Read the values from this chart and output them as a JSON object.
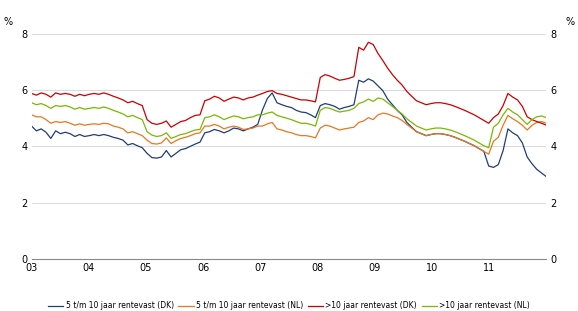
{
  "ylabel_left": "%",
  "ylabel_right": "%",
  "ylim": [
    0,
    8
  ],
  "yticks": [
    0,
    2,
    4,
    6,
    8
  ],
  "xtick_positions": [
    0,
    12,
    24,
    36,
    48,
    60,
    72,
    84,
    96,
    108
  ],
  "xtick_labels": [
    "03",
    "04",
    "05",
    "06",
    "07",
    "08",
    "09",
    "10",
    "11",
    ""
  ],
  "legend_labels": [
    "5 t/m 10 jaar rentevast (DK)",
    "5 t/m 10 jaar rentevast (NL)",
    ">10 jaar rentevast (DK)",
    ">10 jaar rentevast (NL)"
  ],
  "colors": {
    "DK_5_10": "#1f3d7a",
    "NL_5_10": "#e87722",
    "DK_10plus": "#cc0000",
    "NL_10plus": "#7ab800"
  },
  "series": {
    "DK_5_10": [
      4.72,
      4.55,
      4.62,
      4.5,
      4.28,
      4.55,
      4.45,
      4.5,
      4.45,
      4.35,
      4.42,
      4.35,
      4.38,
      4.42,
      4.38,
      4.42,
      4.38,
      4.32,
      4.28,
      4.22,
      4.05,
      4.1,
      4.02,
      3.95,
      3.75,
      3.6,
      3.58,
      3.62,
      3.85,
      3.62,
      3.75,
      3.88,
      3.92,
      4.0,
      4.08,
      4.15,
      4.48,
      4.52,
      4.6,
      4.55,
      4.48,
      4.55,
      4.65,
      4.62,
      4.55,
      4.62,
      4.68,
      4.78,
      5.3,
      5.7,
      5.9,
      5.55,
      5.48,
      5.42,
      5.38,
      5.28,
      5.22,
      5.2,
      5.12,
      5.02,
      5.45,
      5.52,
      5.48,
      5.42,
      5.32,
      5.38,
      5.42,
      5.48,
      6.35,
      6.28,
      6.4,
      6.32,
      6.15,
      5.98,
      5.68,
      5.48,
      5.28,
      5.12,
      4.85,
      4.68,
      4.52,
      4.45,
      4.38,
      4.42,
      4.45,
      4.45,
      4.42,
      4.38,
      4.32,
      4.25,
      4.18,
      4.1,
      4.02,
      3.92,
      3.82,
      3.3,
      3.25,
      3.35,
      3.85,
      4.62,
      4.48,
      4.38,
      4.12,
      3.62,
      3.38,
      3.18,
      3.05,
      2.92
    ],
    "NL_5_10": [
      5.12,
      5.05,
      5.05,
      4.95,
      4.82,
      4.88,
      4.85,
      4.88,
      4.82,
      4.75,
      4.8,
      4.75,
      4.78,
      4.8,
      4.78,
      4.82,
      4.8,
      4.72,
      4.68,
      4.62,
      4.48,
      4.52,
      4.45,
      4.38,
      4.22,
      4.1,
      4.08,
      4.12,
      4.3,
      4.1,
      4.2,
      4.28,
      4.32,
      4.38,
      4.45,
      4.48,
      4.72,
      4.72,
      4.78,
      4.72,
      4.62,
      4.68,
      4.72,
      4.68,
      4.6,
      4.62,
      4.65,
      4.72,
      4.72,
      4.8,
      4.85,
      4.62,
      4.58,
      4.52,
      4.48,
      4.42,
      4.38,
      4.38,
      4.35,
      4.3,
      4.65,
      4.75,
      4.72,
      4.65,
      4.58,
      4.62,
      4.65,
      4.68,
      4.85,
      4.9,
      5.02,
      4.95,
      5.12,
      5.18,
      5.15,
      5.08,
      5.02,
      4.92,
      4.78,
      4.65,
      4.52,
      4.45,
      4.38,
      4.42,
      4.45,
      4.45,
      4.42,
      4.38,
      4.32,
      4.25,
      4.18,
      4.1,
      4.02,
      3.92,
      3.82,
      3.72,
      4.18,
      4.32,
      4.75,
      5.1,
      4.98,
      4.88,
      4.75,
      4.58,
      4.75,
      4.85,
      4.88,
      4.82
    ],
    "DK_10plus": [
      5.88,
      5.82,
      5.9,
      5.85,
      5.75,
      5.9,
      5.85,
      5.88,
      5.85,
      5.78,
      5.85,
      5.8,
      5.85,
      5.88,
      5.85,
      5.9,
      5.85,
      5.78,
      5.72,
      5.65,
      5.55,
      5.6,
      5.52,
      5.45,
      4.95,
      4.82,
      4.78,
      4.82,
      4.9,
      4.68,
      4.78,
      4.88,
      4.92,
      5.02,
      5.1,
      5.12,
      5.62,
      5.68,
      5.78,
      5.72,
      5.6,
      5.68,
      5.75,
      5.72,
      5.65,
      5.72,
      5.75,
      5.82,
      5.88,
      5.95,
      5.98,
      5.88,
      5.85,
      5.8,
      5.75,
      5.7,
      5.65,
      5.65,
      5.62,
      5.58,
      6.45,
      6.55,
      6.5,
      6.42,
      6.35,
      6.38,
      6.42,
      6.48,
      7.52,
      7.42,
      7.7,
      7.62,
      7.3,
      7.05,
      6.78,
      6.55,
      6.35,
      6.18,
      5.95,
      5.78,
      5.62,
      5.55,
      5.48,
      5.52,
      5.55,
      5.55,
      5.52,
      5.48,
      5.42,
      5.35,
      5.28,
      5.2,
      5.12,
      5.02,
      4.92,
      4.82,
      5.02,
      5.15,
      5.45,
      5.88,
      5.75,
      5.65,
      5.42,
      5.05,
      4.95,
      4.88,
      4.82,
      4.75
    ],
    "NL_10plus": [
      5.55,
      5.48,
      5.52,
      5.45,
      5.35,
      5.45,
      5.42,
      5.45,
      5.4,
      5.32,
      5.38,
      5.32,
      5.35,
      5.38,
      5.35,
      5.4,
      5.35,
      5.28,
      5.22,
      5.15,
      5.05,
      5.1,
      5.02,
      4.95,
      4.52,
      4.4,
      4.35,
      4.38,
      4.48,
      4.28,
      4.35,
      4.42,
      4.45,
      4.52,
      4.58,
      4.6,
      5.02,
      5.05,
      5.12,
      5.05,
      4.95,
      5.02,
      5.08,
      5.05,
      4.98,
      5.02,
      5.05,
      5.12,
      5.12,
      5.18,
      5.22,
      5.1,
      5.05,
      5.0,
      4.95,
      4.88,
      4.82,
      4.82,
      4.78,
      4.72,
      5.28,
      5.38,
      5.35,
      5.28,
      5.22,
      5.25,
      5.28,
      5.35,
      5.52,
      5.58,
      5.68,
      5.6,
      5.72,
      5.68,
      5.55,
      5.42,
      5.28,
      5.15,
      4.98,
      4.85,
      4.72,
      4.65,
      4.58,
      4.62,
      4.65,
      4.65,
      4.62,
      4.58,
      4.52,
      4.45,
      4.38,
      4.3,
      4.22,
      4.12,
      4.02,
      3.95,
      4.68,
      4.82,
      5.12,
      5.35,
      5.22,
      5.12,
      4.95,
      4.78,
      4.95,
      5.05,
      5.08,
      5.02
    ]
  }
}
